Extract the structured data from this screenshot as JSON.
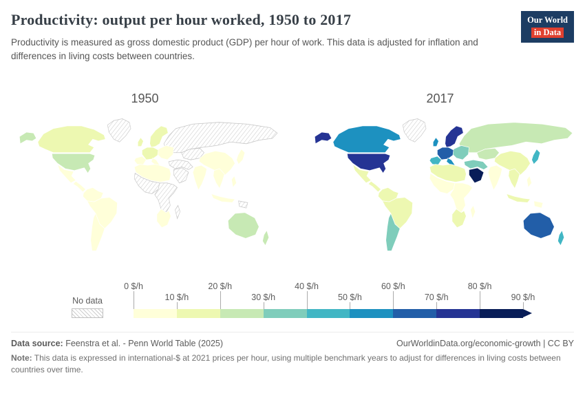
{
  "header": {
    "title": "Productivity: output per hour worked, 1950 to 2017",
    "subtitle": "Productivity is measured as gross domestic product (GDP) per hour of work. This data is adjusted for inflation and differences in living costs between countries.",
    "logo": {
      "line1": "Our World",
      "line2": "in Data",
      "bg": "#1d3d63",
      "accent": "#e0402f"
    }
  },
  "chart_data": {
    "type": "choropleth",
    "title": "Productivity: output per hour worked, 1950 to 2017",
    "unit": "international-$ per hour worked",
    "years": [
      "1950",
      "2017"
    ],
    "legend": {
      "no_data_label": "No data",
      "thresholds": [
        0,
        10,
        20,
        30,
        40,
        50,
        60,
        70,
        80,
        90
      ],
      "tick_labels": [
        "0 $/h",
        "10 $/h",
        "20 $/h",
        "30 $/h",
        "40 $/h",
        "50 $/h",
        "60 $/h",
        "70 $/h",
        "80 $/h",
        "90 $/h"
      ],
      "colors": [
        "#ffffd9",
        "#edf8b1",
        "#c7e9b4",
        "#7fcdbb",
        "#41b6c4",
        "#1d91c0",
        "#225ea8",
        "#253494",
        "#081d58"
      ],
      "overflow_arrow_color": "#081d58",
      "no_data_style": "diagonal-hatch"
    },
    "regions": [
      {
        "id": "greenland",
        "name": "Greenland",
        "values": {
          "1950": null,
          "2017": null
        }
      },
      {
        "id": "alaska",
        "name": "Alaska (United States)",
        "values": {
          "1950": 21,
          "2017": 72
        }
      },
      {
        "id": "canada",
        "name": "Canada",
        "values": {
          "1950": 14,
          "2017": 54
        }
      },
      {
        "id": "usa",
        "name": "United States",
        "values": {
          "1950": 21,
          "2017": 72
        }
      },
      {
        "id": "mexico",
        "name": "Mexico",
        "values": {
          "1950": 6,
          "2017": 19
        }
      },
      {
        "id": "central-america",
        "name": "Central America",
        "values": {
          "1950": 5,
          "2017": 11
        }
      },
      {
        "id": "south-america-north",
        "name": "Northern South America",
        "values": {
          "1950": 7,
          "2017": 13
        }
      },
      {
        "id": "brazil",
        "name": "Brazil",
        "values": {
          "1950": 4,
          "2017": 15
        }
      },
      {
        "id": "southern-cone",
        "name": "Argentina / Chile",
        "values": {
          "1950": 9,
          "2017": 32
        }
      },
      {
        "id": "uk",
        "name": "United Kingdom",
        "values": {
          "1950": 12,
          "2017": 54
        }
      },
      {
        "id": "scandinavia",
        "name": "Scandinavia",
        "values": {
          "1950": 12,
          "2017": 72
        }
      },
      {
        "id": "western-europe",
        "name": "Western Europe",
        "values": {
          "1950": 10,
          "2017": 66
        }
      },
      {
        "id": "iberia",
        "name": "Spain / Portugal",
        "values": {
          "1950": 6,
          "2017": 48
        }
      },
      {
        "id": "italy",
        "name": "Italy",
        "values": {
          "1950": 8,
          "2017": 54
        }
      },
      {
        "id": "eastern-europe",
        "name": "Eastern Europe",
        "values": {
          "1950": 5,
          "2017": 34
        }
      },
      {
        "id": "russia",
        "name": "Russia",
        "values": {
          "1950": null,
          "2017": 28
        }
      },
      {
        "id": "central-asia",
        "name": "Central Asia",
        "values": {
          "1950": null,
          "2017": 23
        }
      },
      {
        "id": "middle-east",
        "name": "Turkey / Iran",
        "values": {
          "1950": null,
          "2017": 38
        }
      },
      {
        "id": "arabian-peninsula",
        "name": "Saudi Arabia",
        "values": {
          "1950": null,
          "2017": 86
        }
      },
      {
        "id": "north-africa",
        "name": "North Africa",
        "values": {
          "1950": 4,
          "2017": 18
        }
      },
      {
        "id": "west-africa",
        "name": "West Africa",
        "values": {
          "1950": null,
          "2017": 5
        }
      },
      {
        "id": "east-africa",
        "name": "East / Central Africa",
        "values": {
          "1950": null,
          "2017": 4
        }
      },
      {
        "id": "southern-africa",
        "name": "Southern Africa",
        "values": {
          "1950": 6,
          "2017": 19
        }
      },
      {
        "id": "madagascar",
        "name": "Madagascar",
        "values": {
          "1950": null,
          "2017": 3
        }
      },
      {
        "id": "india",
        "name": "India",
        "values": {
          "1950": 2,
          "2017": 9
        }
      },
      {
        "id": "china",
        "name": "China",
        "values": {
          "1950": 2,
          "2017": 13
        }
      },
      {
        "id": "japan",
        "name": "Japan",
        "values": {
          "1950": 4,
          "2017": 46
        }
      },
      {
        "id": "se-asia",
        "name": "Southeast Asia",
        "values": {
          "1950": 3,
          "2017": 10
        }
      },
      {
        "id": "philippines",
        "name": "Philippines",
        "values": {
          "1950": 3,
          "2017": 9
        }
      },
      {
        "id": "indonesia",
        "name": "Indonesia",
        "values": {
          "1950": 3,
          "2017": 12
        }
      },
      {
        "id": "new-guinea",
        "name": "New Guinea",
        "values": {
          "1950": null,
          "2017": 4
        }
      },
      {
        "id": "australia",
        "name": "Australia",
        "values": {
          "1950": 21,
          "2017": 61
        }
      },
      {
        "id": "new-zealand",
        "name": "New Zealand",
        "values": {
          "1950": 21,
          "2017": 42
        }
      }
    ]
  },
  "footer": {
    "source_label": "Data source:",
    "source_text": " Feenstra et al. - Penn World Table (2025)",
    "link": "OurWorldinData.org/economic-growth",
    "separator": " | ",
    "license": "CC BY",
    "note_label": "Note:",
    "note_text": " This data is expressed in international-$ at 2021 prices per hour, using multiple benchmark years to adjust for differences in living costs between countries over time."
  }
}
